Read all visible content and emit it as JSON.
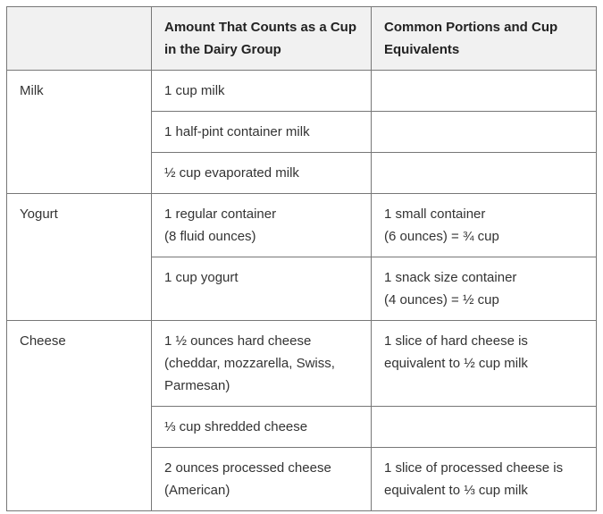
{
  "table": {
    "headers": [
      "",
      "Amount That Counts as a Cup in the Dairy Group",
      "Common Portions and Cup Equivalents"
    ],
    "groups": {
      "milk": {
        "name": "Milk",
        "rows": [
          {
            "amount": [
              "1 cup milk"
            ],
            "portion": []
          },
          {
            "amount": [
              "1 half-pint container milk"
            ],
            "portion": []
          },
          {
            "amount": [
              "½ cup evaporated milk"
            ],
            "portion": []
          }
        ]
      },
      "yogurt": {
        "name": "Yogurt",
        "rows": [
          {
            "amount": [
              "1 regular container",
              "(8 fluid ounces)"
            ],
            "portion": [
              "1 small container",
              "(6 ounces) = ¾ cup"
            ]
          },
          {
            "amount": [
              "1 cup yogurt"
            ],
            "portion": [
              "1 snack size container",
              "(4 ounces) = ½ cup"
            ]
          }
        ]
      },
      "cheese": {
        "name": "Cheese",
        "rows": [
          {
            "amount": [
              "1 ½ ounces hard cheese",
              "(cheddar, mozzarella, Swiss,",
              "Parmesan)"
            ],
            "portion": [
              "1 slice of hard cheese is",
              "equivalent to ½ cup milk"
            ]
          },
          {
            "amount": [
              "⅓ cup shredded cheese"
            ],
            "portion": []
          },
          {
            "amount": [
              "2 ounces processed cheese",
              "(American)"
            ],
            "portion": [
              "1 slice of processed cheese is",
              "equivalent to ⅓ cup milk"
            ]
          }
        ]
      }
    }
  }
}
